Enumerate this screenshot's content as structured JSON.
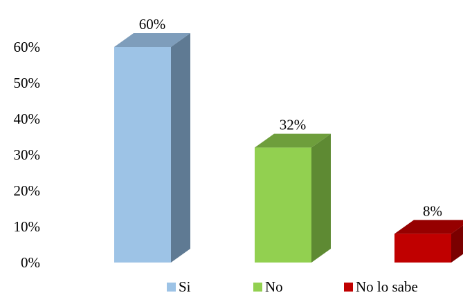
{
  "chart_data": {
    "type": "bar",
    "style": "3d-column",
    "categories": [
      "Si",
      "No",
      "No lo sabe"
    ],
    "values": [
      60,
      32,
      8
    ],
    "data_labels": [
      "60%",
      "32%",
      "8%"
    ],
    "colors": {
      "Si": {
        "front": "#9DC3E6",
        "side": "#5F7A93",
        "top": "#7E9DBB"
      },
      "No": {
        "front": "#92D050",
        "side": "#5E8A33",
        "top": "#6E9E3C"
      },
      "No lo sabe": {
        "front": "#C00000",
        "side": "#7A0000",
        "top": "#960000"
      }
    },
    "ylim": [
      0,
      70
    ],
    "yticks": [
      0,
      10,
      20,
      30,
      40,
      50,
      60
    ],
    "ytick_labels": [
      "0%",
      "10%",
      "20%",
      "30%",
      "40%",
      "50%",
      "60%"
    ],
    "grid": false,
    "legend": {
      "position": "bottom",
      "entries": [
        "Si",
        "No",
        "No lo sabe"
      ]
    },
    "title": "",
    "xlabel": "",
    "ylabel": ""
  }
}
